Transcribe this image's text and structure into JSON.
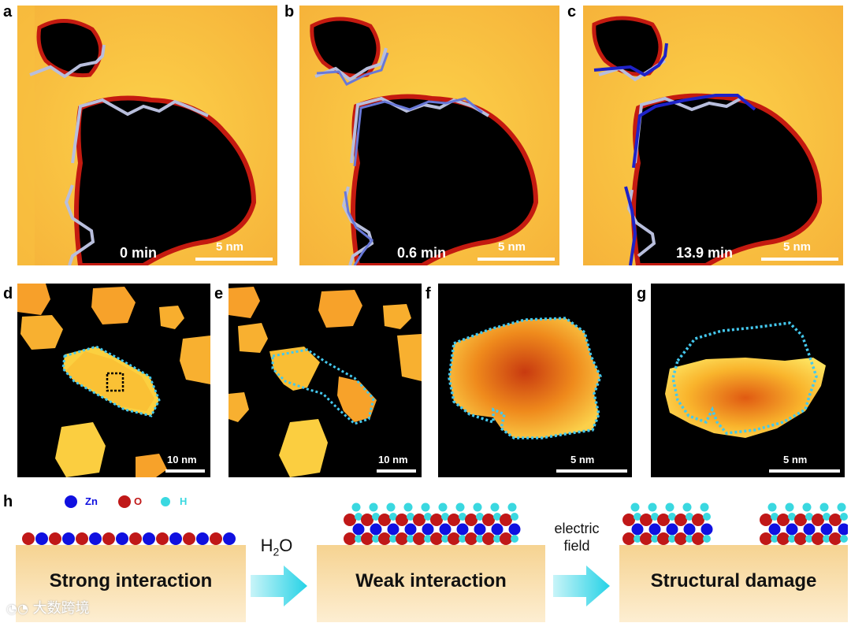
{
  "panels_top": [
    {
      "label": "a",
      "time": "0 min",
      "scale": "5 nm"
    },
    {
      "label": "b",
      "time": "0.6 min",
      "scale": "5 nm"
    },
    {
      "label": "c",
      "time": "13.9 min",
      "scale": "5 nm"
    }
  ],
  "panels_mid": [
    {
      "label": "d",
      "scale": "10 nm"
    },
    {
      "label": "e",
      "scale": "10 nm"
    },
    {
      "label": "f",
      "scale": "5 nm"
    },
    {
      "label": "g",
      "scale": "5 nm"
    }
  ],
  "schematic": {
    "label": "h",
    "legend": [
      {
        "symbol": "Zn",
        "color": "#1010e0"
      },
      {
        "symbol": "O",
        "color": "#c01818"
      },
      {
        "symbol": "H",
        "color": "#3ad8e0"
      }
    ],
    "stage1": "Strong interaction",
    "stage2": "Weak interaction",
    "stage3": "Structural damage",
    "arrow1_text": "H",
    "arrow1_sub": "2",
    "arrow1_text2": "O",
    "arrow2_line1": "electric",
    "arrow2_line2": "field"
  },
  "watermark": "大数跨境",
  "colors": {
    "zn": "#1010e0",
    "o": "#c01818",
    "h": "#3ad8e0",
    "trace_light": "#b8bedc",
    "trace_dark": "#2020c8",
    "dotted": "#44c8ee",
    "substrate_top": "#f8dca0",
    "substrate_bottom": "#fbe9c6",
    "arrow": "#3ad6e8"
  }
}
